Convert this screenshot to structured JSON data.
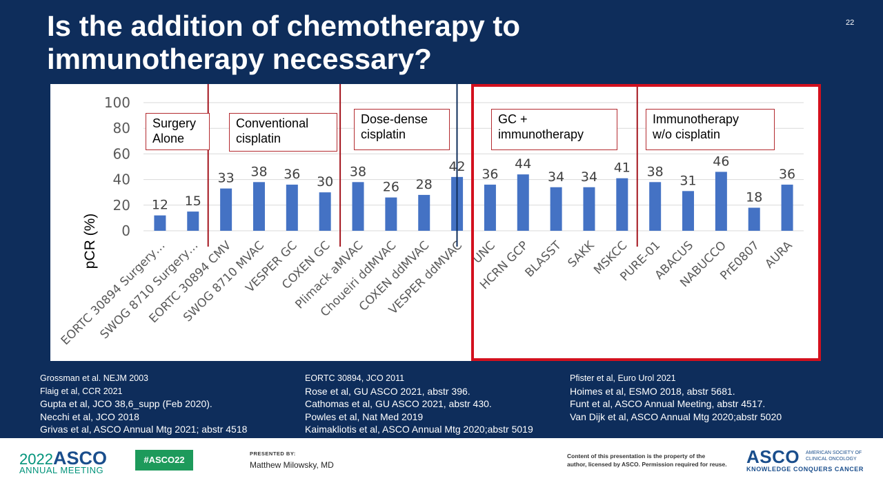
{
  "slide": {
    "title_line1": "Is the addition of chemotherapy to",
    "title_line2": "immunotherapy necessary?",
    "slide_number": "22"
  },
  "chart_data": {
    "type": "bar",
    "title": "",
    "xlabel": "",
    "ylabel": "pCR (%)",
    "ylim": [
      0,
      100
    ],
    "yticks": [
      0,
      20,
      40,
      60,
      80,
      100
    ],
    "grid": true,
    "bar_color": "#4472c4",
    "categories": [
      "EORTC 30894 Surgery…",
      "SWOG 8710 Surgery…",
      "EORTC 30894 CMV",
      "SWOG 8710 MVAC",
      "VESPER GC",
      "COXEN GC",
      "Plimack aMVAC",
      "Choueiri ddMVAC",
      "COXEN ddMVAC",
      "VESPER ddMVAC",
      "UNC",
      "HCRN GCP",
      "BLASST",
      "SAKK",
      "MSKCC",
      "PURE-01",
      "ABACUS",
      "NABUCCO",
      "PrE0807",
      "AURA"
    ],
    "values": [
      12,
      15,
      33,
      38,
      36,
      30,
      38,
      26,
      28,
      42,
      36,
      44,
      34,
      34,
      41,
      38,
      31,
      46,
      18,
      36
    ],
    "groups": [
      {
        "label_line1": "Surgery",
        "label_line2": "Alone"
      },
      {
        "label_line1": "Conventional",
        "label_line2": "cisplatin"
      },
      {
        "label_line1": "Dose-dense",
        "label_line2": "cisplatin"
      },
      {
        "label_line1": "GC +",
        "label_line2": "immunotherapy"
      },
      {
        "label_line1": "Immunotherapy",
        "label_line2": "w/o cisplatin"
      }
    ]
  },
  "references": {
    "col1": [
      "Grossman et al. NEJM 2003",
      "Flaig et al, CCR 2021",
      "Gupta et al, JCO 38,6_supp (Feb 2020).",
      "Necchi et al, JCO 2018",
      "Grivas et al, ASCO Annual Mtg 2021; abstr 4518"
    ],
    "col2": [
      "EORTC 30894, JCO 2011",
      "Rose et al, GU ASCO 2021, abstr 396.",
      "Cathomas et al, GU ASCO 2021, abstr 430.",
      "Powles et al, Nat Med 2019",
      "Kaimakliotis et al, ASCO Annual Mtg 2020;abstr 5019"
    ],
    "col3": [
      "Pfister et al, Euro Urol 2021",
      "Hoimes et al, ESMO 2018, abstr 5681.",
      "Funt et al, ASCO Annual Meeting, abstr 4517.",
      "Van Dijk et al, ASCO Annual Mtg 2020;abstr 5020"
    ]
  },
  "footer": {
    "year": "2022",
    "asco": "ASCO",
    "annual_meeting": "ANNUAL MEETING",
    "hashtag": "#ASCO22",
    "presented_by": "PRESENTED BY:",
    "presenter": "Matthew Milowsky, MD",
    "notice_line1": "Content of this presentation is the property of the",
    "notice_line2": "author, licensed by ASCO. Permission required for reuse.",
    "logo_text": "ASCO",
    "society_line1": "AMERICAN SOCIETY OF",
    "society_line2": "CLINICAL ONCOLOGY",
    "tagline": "KNOWLEDGE CONQUERS CANCER"
  }
}
